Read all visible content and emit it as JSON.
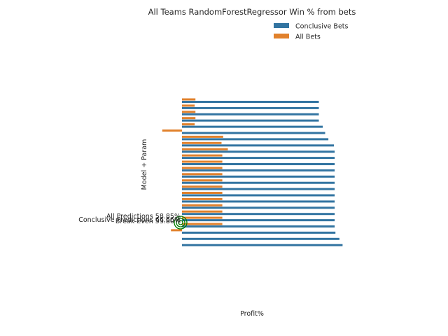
{
  "chart_data": {
    "type": "bar",
    "orientation": "horizontal",
    "title": "All Teams RandomForestRegressor Win % from bets",
    "xlabel": "Profit%",
    "ylabel": "Model + Param",
    "legend": {
      "placement": "top-right",
      "entries": [
        "Conclusive Bets",
        "All Bets"
      ]
    },
    "grid": false,
    "xlim": [
      -2.5,
      20.5
    ],
    "series": [
      {
        "name": "Conclusive Bets",
        "color": "#3274a1",
        "values": [
          17.3,
          17.3,
          17.3,
          17.3,
          17.8,
          18.1,
          18.5,
          19.2,
          19.3,
          19.3,
          19.3,
          19.3,
          19.3,
          19.3,
          19.3,
          19.3,
          19.3,
          19.3,
          19.3,
          19.3,
          19.3,
          19.4,
          19.9,
          20.3
        ]
      },
      {
        "name": "All Bets",
        "color": "#e1812c",
        "values": [
          1.7,
          1.6,
          1.7,
          1.7,
          1.6,
          -2.5,
          5.2,
          5.0,
          5.8,
          5.1,
          5.1,
          5.1,
          5.1,
          5.1,
          5.1,
          5.1,
          5.1,
          5.1,
          5.1,
          5.1,
          5.1,
          -1.4,
          0,
          0
        ]
      }
    ],
    "reference_markers": {
      "color": "#008000",
      "labels": [
        "All Predictions 58.85%",
        "Conclusive Predictions 66.66%",
        "Break Even 53.80%"
      ]
    }
  }
}
